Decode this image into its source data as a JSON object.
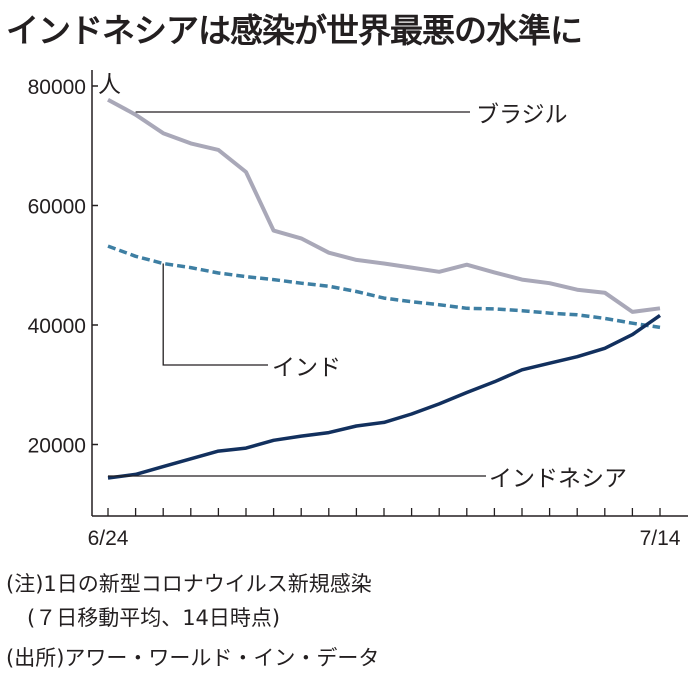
{
  "title": "インドネシアは感染が世界最悪の水準に",
  "chart_data": {
    "type": "line",
    "title": "インドネシアは感染が世界最悪の水準に",
    "ylabel": "人",
    "ylim": [
      8000,
      84000
    ],
    "yticks": [
      20000,
      40000,
      60000,
      80000
    ],
    "x_start": "6/24",
    "x_end": "7/14",
    "xtick_labels": [
      "6/24",
      "7/14"
    ],
    "days": 21,
    "grid": false,
    "series": [
      {
        "name": "ブラジル",
        "color": "#a9a8b8",
        "style": "solid",
        "values": [
          77700,
          75200,
          72100,
          70400,
          69300,
          65600,
          55800,
          54500,
          52100,
          50900,
          50300,
          49600,
          48900,
          50100,
          48800,
          47600,
          47000,
          45900,
          45400,
          42200,
          42800
        ]
      },
      {
        "name": "インド",
        "color": "#3e7fa3",
        "style": "dashed",
        "values": [
          53200,
          51500,
          50300,
          49600,
          48700,
          48100,
          47600,
          47000,
          46500,
          45600,
          44500,
          43900,
          43400,
          42800,
          42700,
          42400,
          42000,
          41700,
          41100,
          40300,
          39600
        ]
      },
      {
        "name": "インドネシア",
        "color": "#12305e",
        "style": "solid",
        "values": [
          14400,
          15000,
          16300,
          17600,
          18900,
          19400,
          20700,
          21400,
          22000,
          23100,
          23700,
          25100,
          26800,
          28700,
          30500,
          32500,
          33600,
          34700,
          36100,
          38400,
          41600
        ]
      }
    ]
  },
  "notes": [
    "(注)1日の新型コロナウイルス新規感染",
    "　(７日移動平均、14日時点)",
    "(出所)アワー・ワールド・イン・データ"
  ]
}
